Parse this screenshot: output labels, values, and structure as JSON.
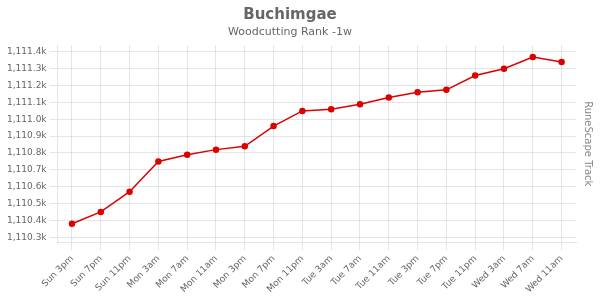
{
  "chart_data": {
    "type": "line",
    "title": "Buchimgae",
    "subtitle": "Woodcutting Rank -1w",
    "annotations": [
      "RuneScape Track"
    ],
    "categories": [
      "Sun 3pm",
      "Sun 7pm",
      "Sun 11pm",
      "Mon 3am",
      "Mon 7am",
      "Mon 11am",
      "Mon 3pm",
      "Mon 7pm",
      "Mon 11pm",
      "Tue 3am",
      "Tue 7am",
      "Tue 11am",
      "Tue 3pm",
      "Tue 7pm",
      "Tue 11pm",
      "Wed 3am",
      "Wed 7am",
      "Wed 11am"
    ],
    "values": [
      1110380,
      1110450,
      1110570,
      1110750,
      1110790,
      1110820,
      1110840,
      1110960,
      1111050,
      1111060,
      1111090,
      1111130,
      1111160,
      1111175,
      1111260,
      1111300,
      1111370,
      1111340
    ],
    "color": "#dd0000",
    "marker": "circle",
    "ylim": [
      1110270,
      1111440
    ],
    "yticks": [
      {
        "value": 1110300,
        "label": "1,110.3k"
      },
      {
        "value": 1110400,
        "label": "1,110.4k"
      },
      {
        "value": 1110500,
        "label": "1,110.5k"
      },
      {
        "value": 1110600,
        "label": "1,110.6k"
      },
      {
        "value": 1110700,
        "label": "1,110.7k"
      },
      {
        "value": 1110800,
        "label": "1,110.8k"
      },
      {
        "value": 1110900,
        "label": "1,110.9k"
      },
      {
        "value": 1111000,
        "label": "1,111.0k"
      },
      {
        "value": 1111100,
        "label": "1,111.1k"
      },
      {
        "value": 1111200,
        "label": "1,111.2k"
      },
      {
        "value": 1111300,
        "label": "1,111.3k"
      },
      {
        "value": 1111400,
        "label": "1,111.4k"
      }
    ],
    "grid": true
  }
}
